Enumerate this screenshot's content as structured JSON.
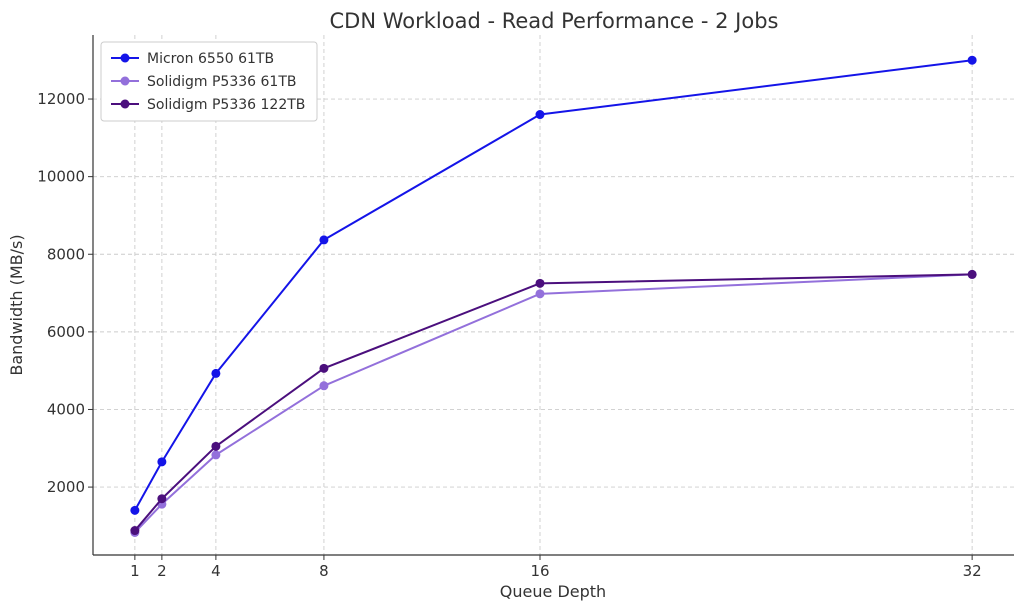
{
  "chart_data": {
    "type": "line",
    "title": "CDN Workload - Read Performance - 2 Jobs",
    "xlabel": "Queue Depth",
    "ylabel": "Bandwidth (MB/s)",
    "x": [
      1,
      2,
      4,
      8,
      16,
      32
    ],
    "x_ticks": [
      "1",
      "2",
      "4",
      "8",
      "16",
      "32"
    ],
    "y_ticks": [
      "2000",
      "4000",
      "6000",
      "8000",
      "10000",
      "12000"
    ],
    "y_tick_values": [
      2000,
      4000,
      6000,
      8000,
      10000,
      12000
    ],
    "xlim": [
      -0.55,
      33.55
    ],
    "ylim": [
      250,
      13650
    ],
    "grid": true,
    "legend_position": "top-left",
    "series": [
      {
        "name": "Micron 6550 61TB",
        "color": "#1414e8",
        "values": [
          1400,
          2650,
          4930,
          8370,
          11600,
          13000
        ]
      },
      {
        "name": "Solidigm P5336 61TB",
        "color": "#9370db",
        "values": [
          830,
          1560,
          2830,
          4610,
          6980,
          7480
        ]
      },
      {
        "name": "Solidigm P5336 122TB",
        "color": "#4b0f7d",
        "values": [
          880,
          1700,
          3050,
          5060,
          7250,
          7480
        ]
      }
    ]
  }
}
